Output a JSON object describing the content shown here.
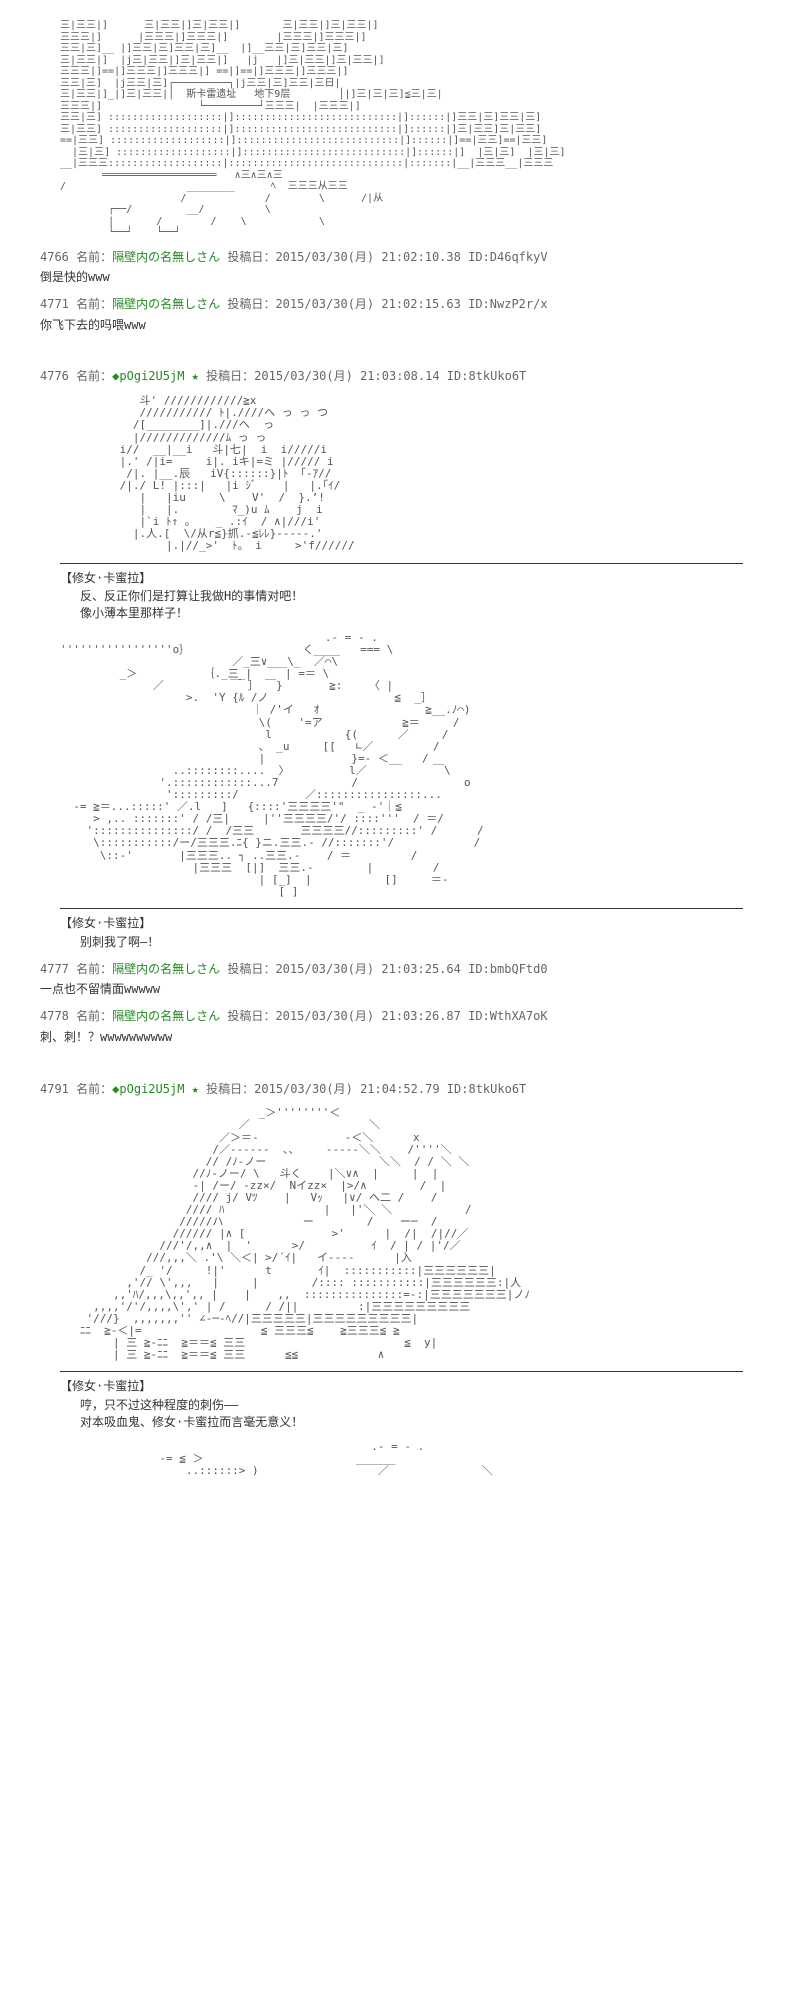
{
  "location_banner": "斯卡雷遗址   地下9层",
  "posts": [
    {
      "number": "4766",
      "name_label": "名前",
      "name": "隔壁内の名無しさん",
      "meta_label": "投稿日",
      "date": "2015/03/30(月) 21:02:10.38",
      "id_label": "ID",
      "id": "D46qfkyV",
      "body": "倒是快的www"
    },
    {
      "number": "4771",
      "name_label": "名前",
      "name": "隔壁内の名無しさん",
      "meta_label": "投稿日",
      "date": "2015/03/30(月) 21:02:15.63",
      "id_label": "ID",
      "id": "NwzP2r/x",
      "body": "你飞下去的吗喂www"
    },
    {
      "number": "4776",
      "name_label": "名前",
      "name": "",
      "trip": "◆pOgi2U5jM",
      "star": "★",
      "meta_label": "投稿日",
      "date": "2015/03/30(月) 21:03:08.14",
      "id_label": "ID",
      "id": "8tkUko6T",
      "body": ""
    },
    {
      "number": "4777",
      "name_label": "名前",
      "name": "隔壁内の名無しさん",
      "meta_label": "投稿日",
      "date": "2015/03/30(月) 21:03:25.64",
      "id_label": "ID",
      "id": "bmbQFtd0",
      "body": "一点也不留情面wwwww"
    },
    {
      "number": "4778",
      "name_label": "名前",
      "name": "隔壁内の名無しさん",
      "meta_label": "投稿日",
      "date": "2015/03/30(月) 21:03:26.87",
      "id_label": "ID",
      "id": "WthXA7oK",
      "body": "刺、刺！？wwwwwwwwww"
    },
    {
      "number": "4791",
      "name_label": "名前",
      "name": "",
      "trip": "◆pOgi2U5jM",
      "star": "★",
      "meta_label": "投稿日",
      "date": "2015/03/30(月) 21:04:52.79",
      "id_label": "ID",
      "id": "8tkUko6T",
      "body": ""
    }
  ],
  "dialogues": [
    {
      "speaker": "【修女·卡蜜拉】",
      "line1": "反、反正你们是打算让我做H的事情对吧！",
      "line2": "像小薄本里那样子！"
    },
    {
      "speaker": "【修女·卡蜜拉】",
      "line1": "别刺我了啊—！",
      "line2": ""
    },
    {
      "speaker": "【修女·卡蜜拉】",
      "line1": "哼，只不过这种程度的刺伤——",
      "line2": "对本吸血鬼、修女·卡蜜拉而言毫无意义！"
    }
  ],
  "ascii": {
    "building": "三|三三|]      三|三三|]三|三三|]       三|三三|]三|三三|]\n三三三|]      |三三三|]三三三|]        |三三三|]三三三|]\n三三|三]__ |]三三|三]三三|三]__  |]__三三|三]三三|三]\n三|三三|]  |j三|三三|]三|三三|]   |j   |]三|三三|]三|三三|]\n三三三|]==|]三三三|]三三三|] ==|]==|]三三三|]三三三|]\n三三|三]  |j三三|三]┌─────────┐|j三三|三]三三|三日|\n三|三三|]_|]三|三三|│                            │|]三|三|三]三|三|三|\n三三三|]                └─────────┘三三三|  |三三三|]\n三三|三] :::::::::::::::::::|]:::::::::::::::::::::::::::|]::::::|]三三|三]三三|三]\n三|三三] :::::::::::::::::::|]:::::::::::::::::::::::::::|]::::::|]三|三三]三|三三]\n==|三三] :::::::::::::::::::|]:::::::::::::::::::::::::::|]::::::|]==|三三]==|三三]\n  |三|三] :::::::::::::::::::|]:::::::::::::::::::::::::::|]::::::|]  |三|三]  |三|三]\n__|三三三:::::::::::::::::::|:::::::::::::::::::::::::::::|:::::::|__|三三三__|三三三\n       ═══════════════════   ∧三∧三∧三\n/                    ________      ﾍ  三三三从三三\n                    /             /        \\      /\\|从\n        ┌──/         __/          \\\n        |       /        /    \\            \\\n        └──┘    └──┘",
    "nun1": "            斗' ////////////≧x\n            /////////// ﾄ|.////ヘ っ っ つ\n           /[________]|.///ヘ  っ\n           |/////////////ﾑ っ っ\n         i//  __|__i   斗|七|  i  i/////i\n         |.' /|i=     i|. iキ|=ミ |///// i\n          /|. |__.辰   iV{::::::}|ﾄ 「-ｱ//\n         /|./ L! |:::|   |i ｼﾞ    |   |.｢ｲ/\n            |   |iu     \\    V'  /  }.’!\n            |   |.        ﾏ_)u ﾑ    j  i\n            |`i ﾄ↑ 。   _ .:ｲ  / ∧|///i'\n           |.人.[  \\/从r≦}抓.-≦ﾚﾚ}-----.'\n                |.|//_>'  ﾄ。 i     >'f//////",
    "nun2": "                                        .- = - .\n'''''''''''''''''o｝                 く____   === \\\n                          ／_三∨___\\_  ／⌒\\\n         _＞          ｛._三_|     | =＝ \\\n              ／          ￣ ］ ￣}       ≧:    〈 |\n                   >.  'Y {ﾙ /ノ                   ≦  _］\n                             ｜ /'イ   ｵ                ≧__.ﾉ⌒)\n                              \\(    '=ア            ≧＝     /\n                               l           {(      ／     /\n                              、 _u     [[   ∟／         /\n                              |             }=- ＜__   /\n                 ..::::::::....  〉         l／          ￣\\\n               '.::::::::::::...7           /                o\n                ':::::::::/          ／::::::::::::::::...\n  -= ≧＝...:::::' ／.l   ]   {::::'三三三三'\"  _ -'｜≦\n     > ,.. :::::::' / /三|     |''三三三三/'/ ::::'''  / ＝/\n    ':::::::::::::::/ /  /三三       三三三三//:::::::::' /      /\n     \\:::::::::::/ー/三三三.ﾆ{ }ニ.三三.- //:::::::'/            /\n      \\::-'       |三三三.. ┐ ..三三.-    / ＝         /\n                    |三三三  [|]  三三.-        |         /\n                              | [_]  |           []     ＝-\n                                 [ ]",
    "nun3": "                              _＞''''''''＜\n                           ／                  ＼\n                        ／＞＝-             -＜＼      x\n                       /／------  、、    -----＼＼    /''''＼\n                      // /ﾉ-ノー                 ＼＼  / / ＼ ＼\n                    //ﾉ-ノー/ \\   斗く    |＼∨∧  |     |  |\n                    -| /ー/ -zz×/  Nイzz×  |>/∧        /  |\n                    //// j/ Vﾂ    |   Vｯ   |∨/ ヘ二 /    /\n                   //// ﾊ               |   |'＼ ＼           /\n                  /////ハ            ー        /    ー─  /\n                 ////// |∧ [             >'      |  /|  /|//／\n               ///'/,,∧  |  '      >/          ｲ  / | / |'/／\n             ///,,,＼ .'\\ ＼＜| >/´ｲ|   イ----      |入\n            /_ '/     !|'      t       ｲ|  :::::::::::|三三三三三三|\n          ,'// \\',,,   |     |        /:::: :::::::::::|三三三三三三:|人\n        ,,'ﾊ/,,,\\,,',, |    |    ,,  :::::::::::::::=-:|三三三三三三三|ノﾉ\n     ,,,,'/'/,,,,\\',' | /      / /||         :|三三三三三三三三三\n    '///}  ,,,,,,,'' ∠-─-ﾍ//|三三三三三|三三三三三三三三三|\n   ﾆﾆ  ≧-＜|=                  ≦ 三三三≦    ≧三三三≦ ≧\n        | 三 ≧-ﾆﾆ  ≧＝＝≦ 三三                        ≦  y| \n        | 三 ≧-ﾆﾆ  ≧＝＝≦ 三三      ≦≦            ∧",
    "nun4_top": "                                               .- = - .\n               -= ≦ ＞                       ______\n                   ..::::::> )                  ／              ＼"
  },
  "colors": {
    "text": "#333333",
    "green": "#228b22",
    "gray": "#666666",
    "ascii": "#555555"
  }
}
